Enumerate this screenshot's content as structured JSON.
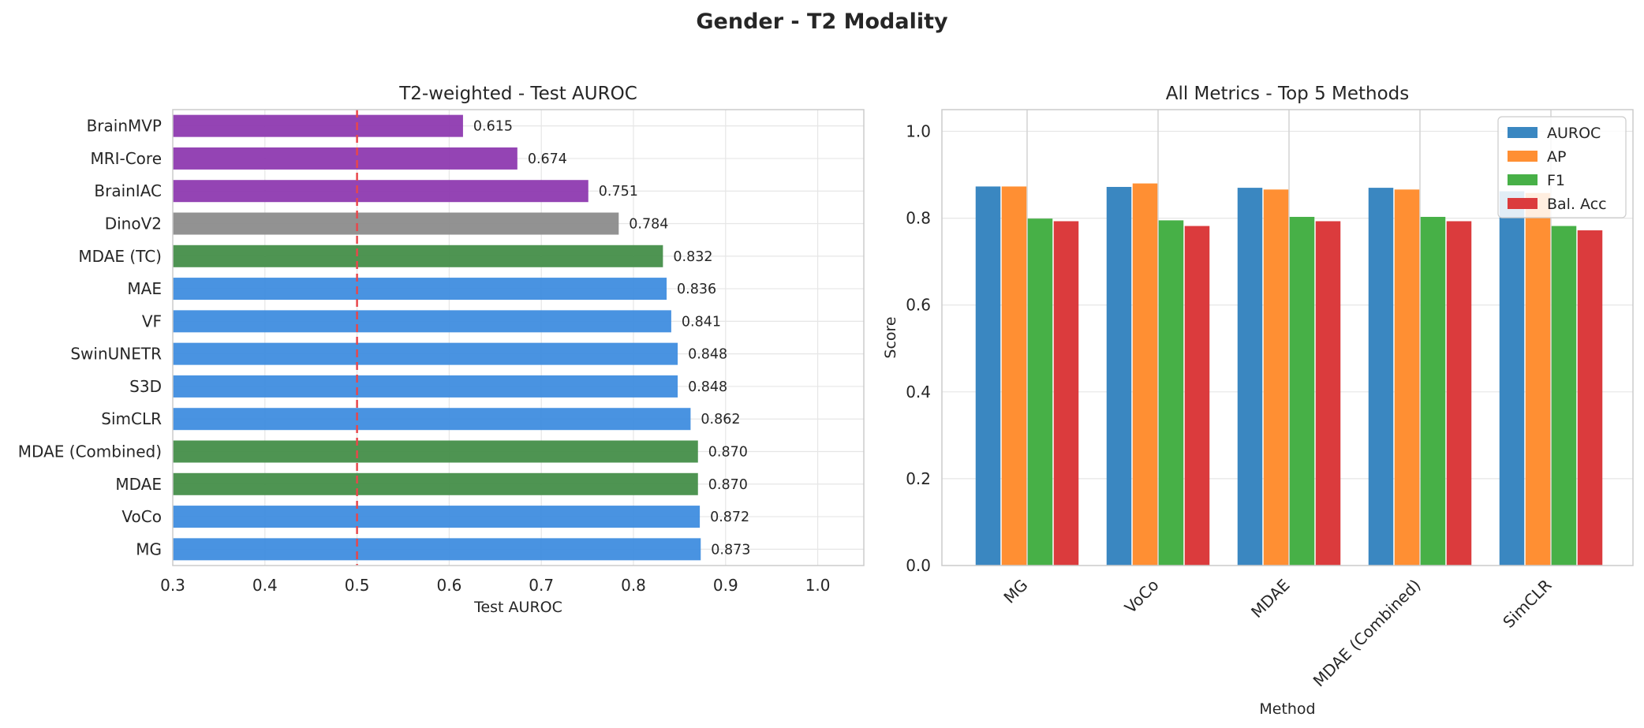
{
  "figure": {
    "title": "Gender - T2 Modality"
  },
  "chart_data": [
    {
      "type": "bar",
      "orientation": "horizontal",
      "title": "T2-weighted - Test AUROC",
      "xlabel": "Test AUROC",
      "ylabel": "",
      "xlim": [
        0.3,
        1.05
      ],
      "xticks": [
        "0.3",
        "0.4",
        "0.5",
        "0.6",
        "0.7",
        "0.8",
        "0.9",
        "1.0"
      ],
      "reference_line": {
        "x": 0.5,
        "color": "#e8474b",
        "style": "dashed"
      },
      "grid": true,
      "categories": [
        "MG",
        "VoCo",
        "MDAE",
        "MDAE (Combined)",
        "SimCLR",
        "S3D",
        "SwinUNETR",
        "VF",
        "MAE",
        "MDAE (TC)",
        "DinoV2",
        "BrainIAC",
        "MRI-Core",
        "BrainMVP"
      ],
      "values": [
        0.873,
        0.872,
        0.87,
        0.87,
        0.862,
        0.848,
        0.848,
        0.841,
        0.836,
        0.832,
        0.784,
        0.751,
        0.674,
        0.615
      ],
      "value_labels": [
        "0.873",
        "0.872",
        "0.870",
        "0.870",
        "0.862",
        "0.848",
        "0.848",
        "0.841",
        "0.836",
        "0.832",
        "0.784",
        "0.751",
        "0.674",
        "0.615"
      ],
      "bar_colors": [
        "#3f8ddf",
        "#3f8ddf",
        "#448e49",
        "#448e49",
        "#3f8ddf",
        "#3f8ddf",
        "#3f8ddf",
        "#3f8ddf",
        "#3f8ddf",
        "#448e49",
        "#8c8c8c",
        "#8e3ab0",
        "#8e3ab0",
        "#8e3ab0"
      ]
    },
    {
      "type": "bar",
      "title": "All Metrics - Top 5 Methods",
      "xlabel": "Method",
      "ylabel": "Score",
      "ylim": [
        0,
        1.05
      ],
      "yticks": [
        "0.0",
        "0.2",
        "0.4",
        "0.6",
        "0.8",
        "1.0"
      ],
      "grid": true,
      "legend_position": "top-right",
      "categories": [
        "MG",
        "VoCo",
        "MDAE",
        "MDAE (Combined)",
        "SimCLR"
      ],
      "series": [
        {
          "name": "AUROC",
          "color": "#3a87c1",
          "values": [
            0.873,
            0.872,
            0.87,
            0.87,
            0.862
          ]
        },
        {
          "name": "AP",
          "color": "#ff8f33",
          "values": [
            0.873,
            0.88,
            0.866,
            0.866,
            0.858
          ]
        },
        {
          "name": "F1",
          "color": "#47b047",
          "values": [
            0.799,
            0.795,
            0.803,
            0.803,
            0.782
          ]
        },
        {
          "name": "Bal. Acc",
          "color": "#db3b3d",
          "values": [
            0.793,
            0.782,
            0.793,
            0.793,
            0.772
          ]
        }
      ]
    }
  ]
}
